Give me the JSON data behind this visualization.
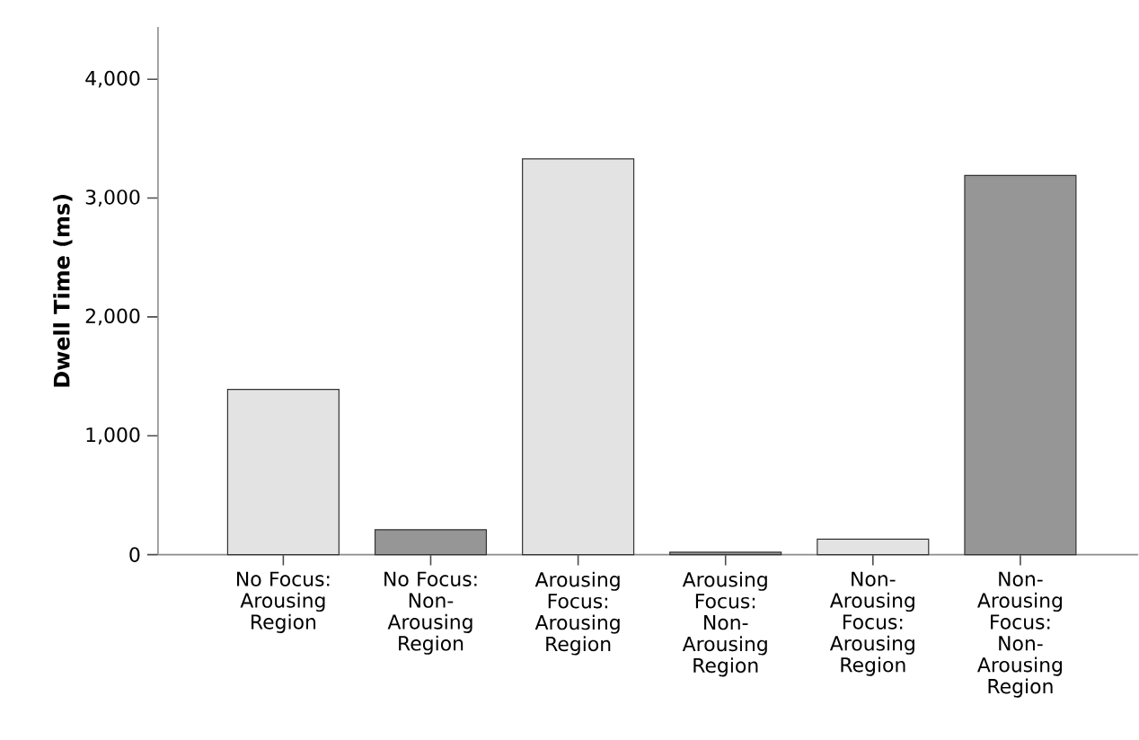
{
  "chart_data": {
    "type": "bar",
    "ylabel": "Dwell Time (ms)",
    "categories": [
      "No Focus: Arousing Region",
      "No Focus: Non-Arousing Region",
      "Arousing Focus: Arousing Region",
      "Arousing Focus: Non-Arousing Region",
      "Non-Arousing Focus: Arousing Region",
      "Non-Arousing Focus: Non-Arousing Region"
    ],
    "values": [
      1390,
      210,
      3330,
      20,
      130,
      3190
    ],
    "colors": [
      "#e3e3e3",
      "#969696",
      "#e3e3e3",
      "#969696",
      "#e3e3e3",
      "#969696"
    ],
    "ylim": [
      0,
      4440
    ],
    "yticks": [
      {
        "value": 0,
        "label": "0"
      },
      {
        "value": 1000,
        "label": "1,000"
      },
      {
        "value": 2000,
        "label": "2,000"
      },
      {
        "value": 3000,
        "label": "3,000"
      },
      {
        "value": 4000,
        "label": "4,000"
      }
    ],
    "grid": false
  }
}
